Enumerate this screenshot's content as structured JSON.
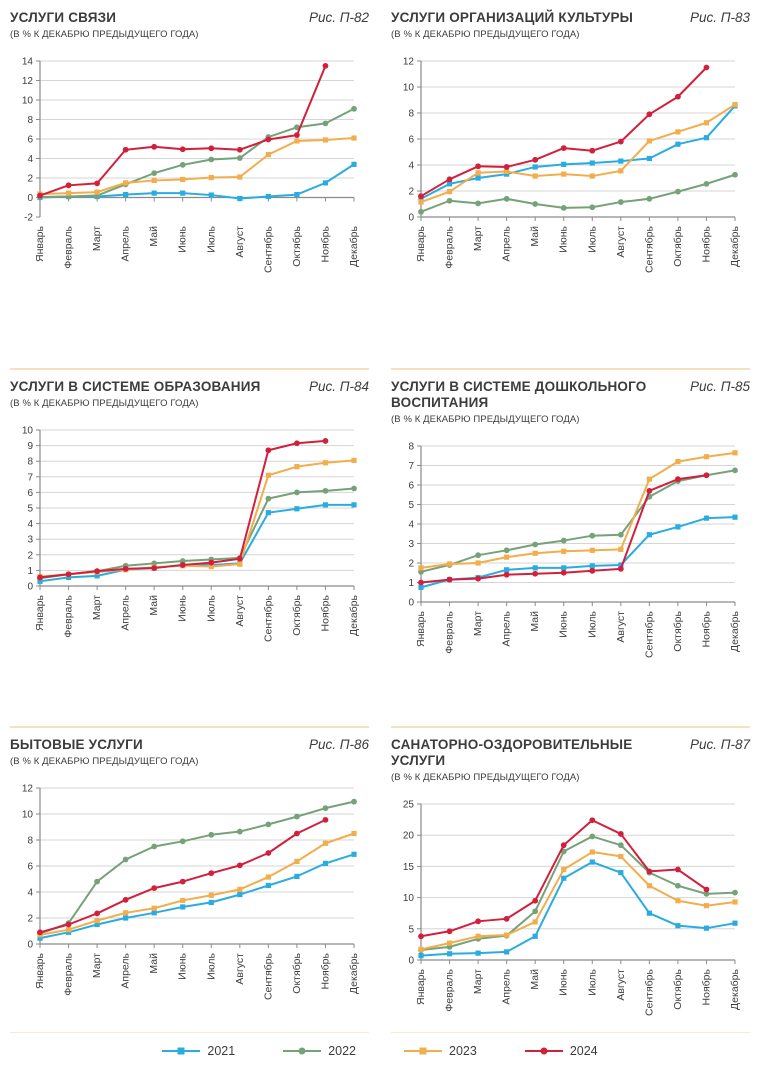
{
  "subtitle_common": "(В % К ДЕКАБРЮ ПРЕДЫДУЩЕГО ГОДА)",
  "legend": {
    "items": [
      {
        "label": "2021",
        "color": "#2bace0",
        "marker": "square"
      },
      {
        "label": "2022",
        "color": "#76a279",
        "marker": "circle"
      },
      {
        "label": "2023",
        "color": "#f2ad4c",
        "marker": "square"
      },
      {
        "label": "2024",
        "color": "#d2203c",
        "marker": "circle"
      }
    ]
  },
  "chart_data": [
    {
      "type": "line",
      "title": "УСЛУГИ СВЯЗИ",
      "fig": "Рис. П-82",
      "subtitle": "(В % К ДЕКАБРЮ ПРЕДЫДУЩЕГО ГОДА)",
      "categories": [
        "Январь",
        "Февраль",
        "Март",
        "Апрель",
        "Май",
        "Июнь",
        "Июль",
        "Август",
        "Сентябрь",
        "Октябрь",
        "Ноябрь",
        "Декабрь"
      ],
      "ylim": [
        -2,
        14
      ],
      "ystep": 2,
      "series": [
        {
          "name": "2021",
          "color": "#2bace0",
          "marker": "square",
          "values": [
            0.0,
            0.1,
            0.1,
            0.3,
            0.45,
            0.45,
            0.25,
            -0.1,
            0.1,
            0.3,
            1.5,
            3.4
          ]
        },
        {
          "name": "2022",
          "color": "#76a279",
          "marker": "circle",
          "values": [
            0.05,
            0.1,
            0.2,
            1.35,
            2.5,
            3.35,
            3.9,
            4.05,
            6.2,
            7.2,
            7.6,
            9.1
          ]
        },
        {
          "name": "2023",
          "color": "#f2ad4c",
          "marker": "square",
          "values": [
            0.35,
            0.45,
            0.55,
            1.5,
            1.75,
            1.85,
            2.05,
            2.1,
            4.4,
            5.8,
            5.9,
            6.1
          ]
        },
        {
          "name": "2024",
          "color": "#d2203c",
          "marker": "circle",
          "values": [
            0.2,
            1.25,
            1.45,
            4.9,
            5.2,
            4.95,
            5.05,
            4.9,
            5.95,
            6.4,
            13.5
          ]
        }
      ]
    },
    {
      "type": "line",
      "title": "УСЛУГИ ОРГАНИЗАЦИЙ КУЛЬТУРЫ",
      "fig": "Рис. П-83",
      "subtitle": "(В % К ДЕКАБРЮ ПРЕДЫДУЩЕГО ГОДА)",
      "categories": [
        "Январь",
        "Февраль",
        "Март",
        "Апрель",
        "Май",
        "Июнь",
        "Июль",
        "Август",
        "Сентябрь",
        "Октябрь",
        "Ноябрь",
        "Декабрь"
      ],
      "ylim": [
        0,
        12
      ],
      "ystep": 2,
      "series": [
        {
          "name": "2021",
          "color": "#2bace0",
          "marker": "square",
          "values": [
            1.4,
            2.55,
            3.0,
            3.3,
            3.85,
            4.05,
            4.15,
            4.3,
            4.5,
            5.6,
            6.1,
            8.55
          ]
        },
        {
          "name": "2022",
          "color": "#76a279",
          "marker": "circle",
          "values": [
            0.4,
            1.25,
            1.05,
            1.4,
            1.0,
            0.7,
            0.75,
            1.15,
            1.4,
            1.95,
            2.55,
            3.25
          ]
        },
        {
          "name": "2023",
          "color": "#f2ad4c",
          "marker": "square",
          "values": [
            1.15,
            1.95,
            3.4,
            3.5,
            3.15,
            3.3,
            3.15,
            3.55,
            5.85,
            6.55,
            7.25,
            8.65
          ]
        },
        {
          "name": "2024",
          "color": "#d2203c",
          "marker": "circle",
          "values": [
            1.6,
            2.9,
            3.9,
            3.85,
            4.4,
            5.3,
            5.1,
            5.8,
            7.9,
            9.25,
            11.5
          ]
        }
      ]
    },
    {
      "type": "line",
      "title": "УСЛУГИ В СИСТЕМЕ ОБРАЗОВАНИЯ",
      "fig": "Рис. П-84",
      "subtitle": "(В % К ДЕКАБРЮ ПРЕДЫДУЩЕГО ГОДА)",
      "categories": [
        "Январь",
        "Февраль",
        "Март",
        "Апрель",
        "Май",
        "Июнь",
        "Июль",
        "Август",
        "Сентябрь",
        "Октябрь",
        "Ноябрь",
        "Декабрь"
      ],
      "ylim": [
        0,
        10
      ],
      "ystep": 1,
      "series": [
        {
          "name": "2021",
          "color": "#2bace0",
          "marker": "square",
          "values": [
            0.3,
            0.55,
            0.65,
            1.05,
            1.15,
            1.35,
            1.35,
            1.45,
            4.7,
            4.95,
            5.2,
            5.2
          ]
        },
        {
          "name": "2022",
          "color": "#76a279",
          "marker": "circle",
          "values": [
            0.5,
            0.75,
            0.95,
            1.3,
            1.45,
            1.6,
            1.7,
            1.8,
            5.6,
            6.0,
            6.1,
            6.25
          ]
        },
        {
          "name": "2023",
          "color": "#f2ad4c",
          "marker": "square",
          "values": [
            0.6,
            0.75,
            0.9,
            1.05,
            1.2,
            1.3,
            1.25,
            1.4,
            7.1,
            7.65,
            7.9,
            8.05
          ]
        },
        {
          "name": "2024",
          "color": "#d2203c",
          "marker": "circle",
          "values": [
            0.55,
            0.75,
            0.95,
            1.1,
            1.15,
            1.35,
            1.5,
            1.75,
            8.7,
            9.15,
            9.3
          ]
        }
      ]
    },
    {
      "type": "line",
      "title": "УСЛУГИ В СИСТЕМЕ ДОШКОЛЬНОГО ВОСПИТАНИЯ",
      "fig": "Рис. П-85",
      "subtitle": "(В % К ДЕКАБРЮ ПРЕДЫДУЩЕГО ГОДА)",
      "categories": [
        "Январь",
        "Февраль",
        "Март",
        "Апрель",
        "Май",
        "Июнь",
        "Июль",
        "Август",
        "Сентябрь",
        "Октябрь",
        "Ноябрь",
        "Декабрь"
      ],
      "ylim": [
        0,
        8
      ],
      "ystep": 1,
      "series": [
        {
          "name": "2021",
          "color": "#2bace0",
          "marker": "square",
          "values": [
            0.75,
            1.15,
            1.25,
            1.65,
            1.75,
            1.75,
            1.85,
            1.9,
            3.45,
            3.85,
            4.3,
            4.35
          ]
        },
        {
          "name": "2022",
          "color": "#76a279",
          "marker": "circle",
          "values": [
            1.55,
            1.9,
            2.4,
            2.65,
            2.95,
            3.15,
            3.4,
            3.45,
            5.4,
            6.2,
            6.5,
            6.75
          ]
        },
        {
          "name": "2023",
          "color": "#f2ad4c",
          "marker": "square",
          "values": [
            1.75,
            1.95,
            2.0,
            2.3,
            2.5,
            2.6,
            2.65,
            2.7,
            6.3,
            7.2,
            7.45,
            7.65
          ]
        },
        {
          "name": "2024",
          "color": "#d2203c",
          "marker": "circle",
          "values": [
            1.0,
            1.15,
            1.2,
            1.4,
            1.45,
            1.5,
            1.6,
            1.7,
            5.7,
            6.3,
            6.5
          ]
        }
      ]
    },
    {
      "type": "line",
      "title": "БЫТОВЫЕ УСЛУГИ",
      "fig": "Рис. П-86",
      "subtitle": "(В % К ДЕКАБРЮ ПРЕДЫДУЩЕГО ГОДА)",
      "categories": [
        "Январь",
        "Февраль",
        "Март",
        "Апрель",
        "Май",
        "Июнь",
        "Июль",
        "Август",
        "Сентябрь",
        "Октябрь",
        "Ноябрь",
        "Декабрь"
      ],
      "ylim": [
        0,
        12
      ],
      "ystep": 2,
      "series": [
        {
          "name": "2021",
          "color": "#2bace0",
          "marker": "square",
          "values": [
            0.45,
            0.9,
            1.5,
            2.0,
            2.4,
            2.85,
            3.2,
            3.8,
            4.5,
            5.2,
            6.2,
            6.9
          ]
        },
        {
          "name": "2022",
          "color": "#76a279",
          "marker": "circle",
          "values": [
            0.8,
            1.6,
            4.8,
            6.5,
            7.5,
            7.9,
            8.4,
            8.65,
            9.2,
            9.8,
            10.45,
            10.95
          ]
        },
        {
          "name": "2023",
          "color": "#f2ad4c",
          "marker": "square",
          "values": [
            0.7,
            1.1,
            1.8,
            2.4,
            2.75,
            3.35,
            3.75,
            4.2,
            5.15,
            6.35,
            7.75,
            8.5
          ]
        },
        {
          "name": "2024",
          "color": "#d2203c",
          "marker": "circle",
          "values": [
            0.9,
            1.5,
            2.35,
            3.4,
            4.3,
            4.8,
            5.45,
            6.05,
            7.0,
            8.5,
            9.55
          ]
        }
      ]
    },
    {
      "type": "line",
      "title": "САНАТОРНО-ОЗДОРОВИТЕЛЬНЫЕ УСЛУГИ",
      "fig": "Рис. П-87",
      "subtitle": "(В % К ДЕКАБРЮ ПРЕДЫДУЩЕГО ГОДА)",
      "categories": [
        "Январь",
        "Февраль",
        "Март",
        "Апрель",
        "Май",
        "Июнь",
        "Июль",
        "Август",
        "Сентябрь",
        "Октябрь",
        "Ноябрь",
        "Декабрь"
      ],
      "ylim": [
        0,
        25
      ],
      "ystep": 5,
      "series": [
        {
          "name": "2021",
          "color": "#2bace0",
          "marker": "square",
          "values": [
            0.7,
            1.0,
            1.1,
            1.3,
            3.8,
            13.1,
            15.7,
            14.0,
            7.5,
            5.5,
            5.1,
            5.9
          ]
        },
        {
          "name": "2022",
          "color": "#76a279",
          "marker": "circle",
          "values": [
            1.6,
            2.1,
            3.4,
            3.9,
            7.8,
            17.4,
            19.8,
            18.4,
            14.0,
            11.9,
            10.6,
            10.8
          ]
        },
        {
          "name": "2023",
          "color": "#f2ad4c",
          "marker": "square",
          "values": [
            1.7,
            2.7,
            3.8,
            4.0,
            6.1,
            14.5,
            17.3,
            16.6,
            11.9,
            9.5,
            8.7,
            9.3
          ]
        },
        {
          "name": "2024",
          "color": "#d2203c",
          "marker": "circle",
          "values": [
            3.8,
            4.6,
            6.2,
            6.6,
            9.5,
            18.4,
            22.4,
            20.2,
            14.2,
            14.5,
            11.3
          ]
        }
      ]
    }
  ]
}
